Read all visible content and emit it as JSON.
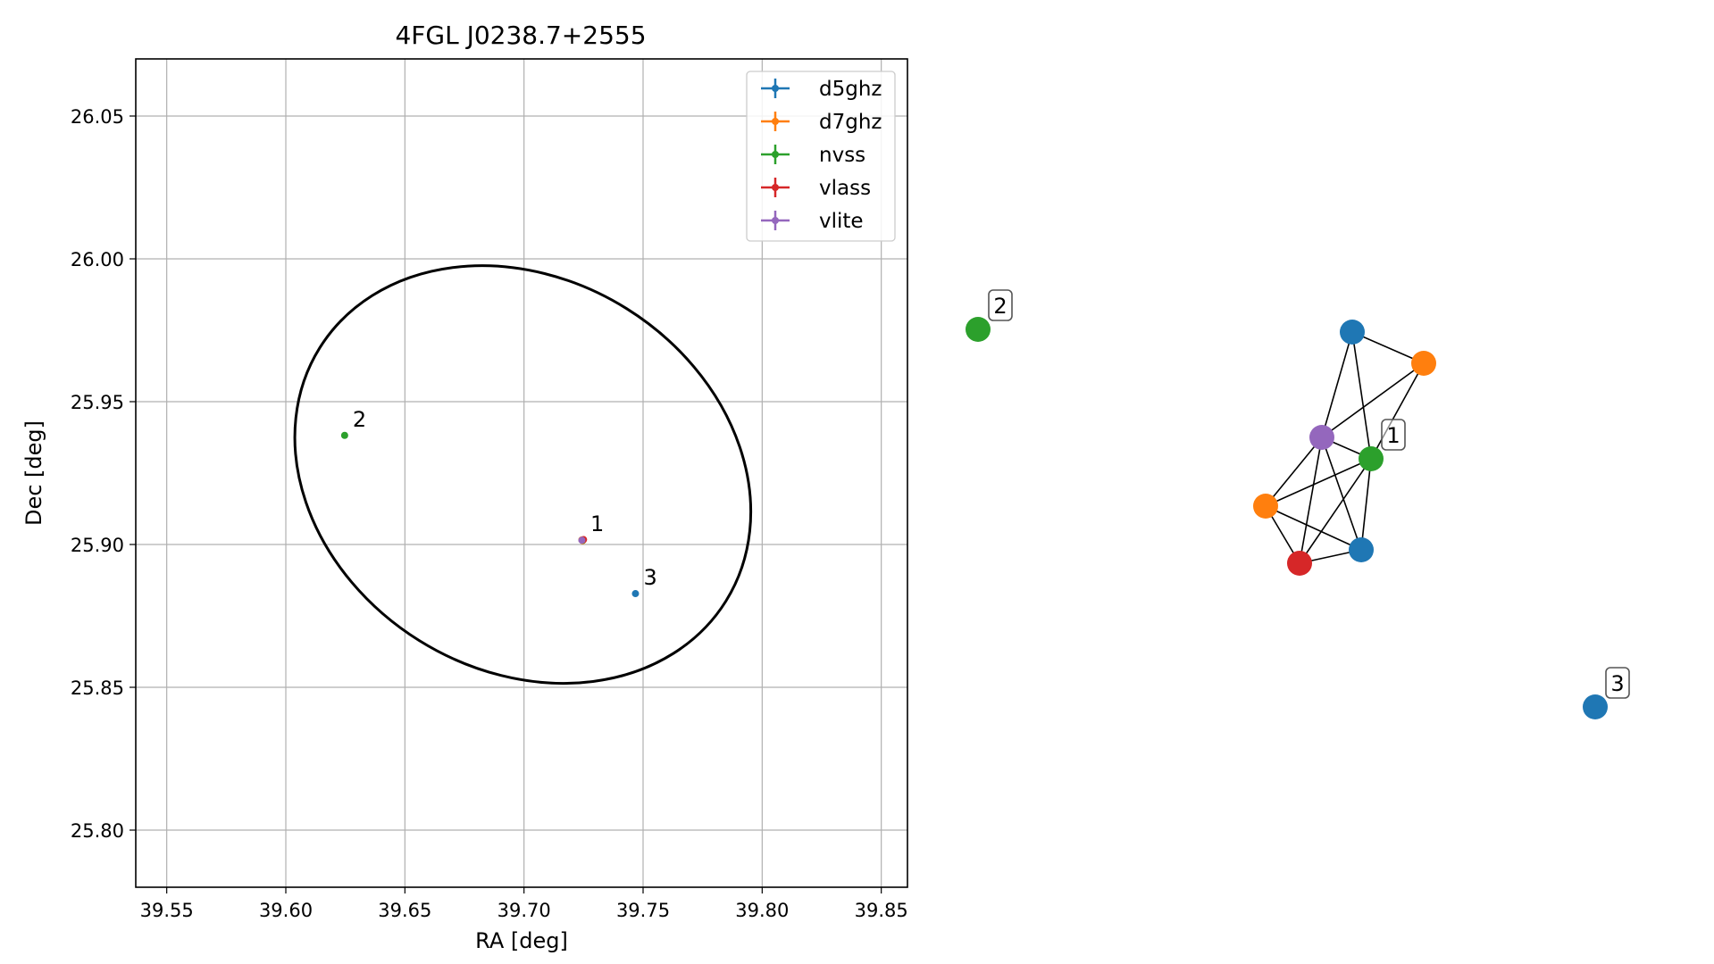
{
  "chart_data": [
    {
      "type": "scatter",
      "title": "4FGL J0238.7+2555",
      "xlabel": "RA [deg]",
      "ylabel": "Dec [deg]",
      "xlim": [
        39.537,
        39.861
      ],
      "ylim": [
        25.78,
        26.07
      ],
      "xticks": [
        "39.55",
        "39.60",
        "39.65",
        "39.70",
        "39.75",
        "39.80",
        "39.85"
      ],
      "yticks": [
        "25.80",
        "25.85",
        "25.90",
        "25.95",
        "26.00",
        "26.05"
      ],
      "grid": true,
      "legend_position": "top-right",
      "series": [
        {
          "name": "d5ghz",
          "color": "#1f77b4",
          "points": [
            {
              "x": 39.7245,
              "y": 25.9015
            },
            {
              "x": 39.7468,
              "y": 25.8828
            }
          ]
        },
        {
          "name": "d7ghz",
          "color": "#ff7f0e",
          "points": [
            {
              "x": 39.7243,
              "y": 25.9016
            },
            {
              "x": 39.7246,
              "y": 25.9013
            }
          ]
        },
        {
          "name": "nvss",
          "color": "#2ca02c",
          "points": [
            {
              "x": 39.7247,
              "y": 25.9015
            },
            {
              "x": 39.6247,
              "y": 25.9382
            }
          ]
        },
        {
          "name": "vlass",
          "color": "#d62728",
          "points": [
            {
              "x": 39.725,
              "y": 25.9017
            }
          ]
        },
        {
          "name": "vlite",
          "color": "#9467bd",
          "points": [
            {
              "x": 39.7243,
              "y": 25.9015
            }
          ]
        }
      ],
      "source_labels": [
        {
          "text": "1",
          "x": 39.7245,
          "y": 25.9015
        },
        {
          "text": "2",
          "x": 39.6247,
          "y": 25.9382
        },
        {
          "text": "3",
          "x": 39.7468,
          "y": 25.8828
        }
      ],
      "ellipse": {
        "center_x": 39.6995,
        "center_y": 25.9245,
        "rx_deg": 0.1005,
        "ry_deg": 0.0685,
        "angle_deg": -32
      }
    },
    {
      "type": "network",
      "nodes": [
        {
          "id": "n0",
          "series": "nvss",
          "color": "#2ca02c"
        },
        {
          "id": "n1",
          "series": "d5ghz",
          "color": "#1f77b4"
        },
        {
          "id": "n2",
          "series": "d7ghz",
          "color": "#ff7f0e"
        },
        {
          "id": "n3",
          "series": "vlite",
          "color": "#9467bd"
        },
        {
          "id": "n4",
          "series": "nvss",
          "color": "#2ca02c"
        },
        {
          "id": "n5",
          "series": "d7ghz",
          "color": "#ff7f0e"
        },
        {
          "id": "n6",
          "series": "d5ghz",
          "color": "#1f77b4"
        },
        {
          "id": "n7",
          "series": "vlass",
          "color": "#d62728"
        },
        {
          "id": "n8",
          "series": "d5ghz",
          "color": "#1f77b4"
        }
      ],
      "edges": [
        [
          "n1",
          "n2"
        ],
        [
          "n1",
          "n3"
        ],
        [
          "n1",
          "n4"
        ],
        [
          "n2",
          "n3"
        ],
        [
          "n2",
          "n4"
        ],
        [
          "n3",
          "n4"
        ],
        [
          "n3",
          "n5"
        ],
        [
          "n3",
          "n6"
        ],
        [
          "n3",
          "n7"
        ],
        [
          "n4",
          "n5"
        ],
        [
          "n4",
          "n6"
        ],
        [
          "n4",
          "n7"
        ],
        [
          "n5",
          "n6"
        ],
        [
          "n5",
          "n7"
        ],
        [
          "n6",
          "n7"
        ]
      ],
      "labels": [
        {
          "text": "2",
          "node": "n0"
        },
        {
          "text": "1",
          "node": "n4"
        },
        {
          "text": "3",
          "node": "n8"
        }
      ]
    }
  ]
}
